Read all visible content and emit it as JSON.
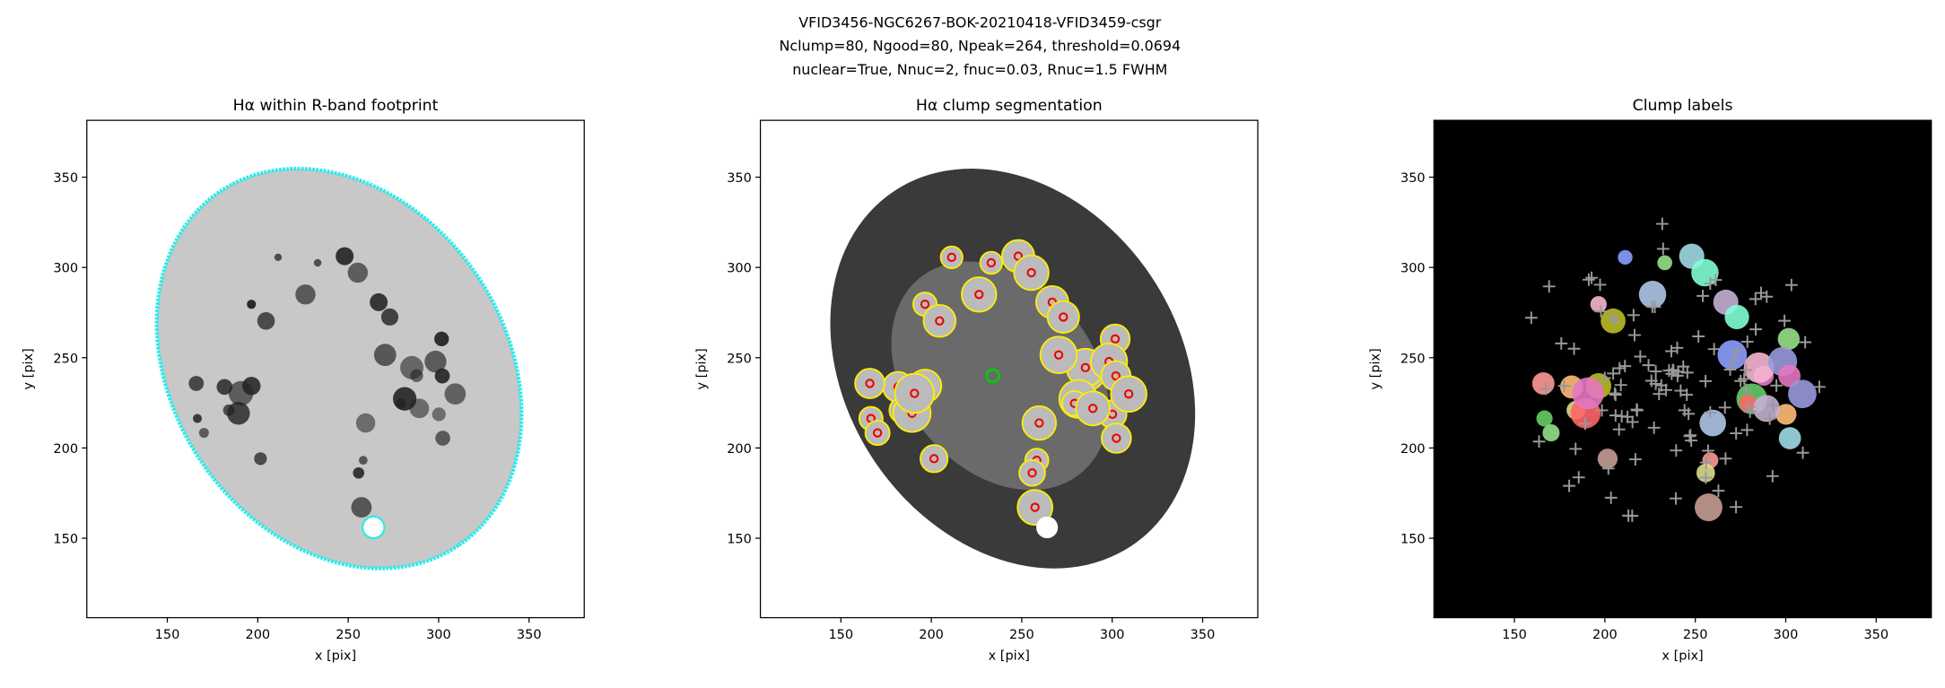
{
  "title": [
    "VFID3456-NGC6267-BOK-20210418-VFID3459-csgr",
    "Nclump=80, Ngood=80, Npeak=264, threshold=0.0694",
    "nuclear=True, Nnuc=2, fnuc=0.03, Rnuc=1.5 FWHM"
  ],
  "chart_data": [
    {
      "type": "image",
      "title": "Hα within R-band footprint",
      "xlabel": "x [pix]",
      "ylabel": "y [pix]",
      "style": "footprint",
      "xlim": [
        105.5,
        380.5
      ],
      "ylim": [
        106,
        381.5
      ],
      "xticks": [
        150,
        200,
        250,
        300,
        350
      ],
      "yticks": [
        150,
        200,
        250,
        300,
        350
      ]
    },
    {
      "type": "image",
      "title": "Hα clump segmentation",
      "xlabel": "x [pix]",
      "ylabel": "y [pix]",
      "style": "segmentation",
      "xlim": [
        105.5,
        380.5
      ],
      "ylim": [
        106,
        381.5
      ],
      "xticks": [
        150,
        200,
        250,
        300,
        350
      ],
      "yticks": [
        150,
        200,
        250,
        300,
        350
      ]
    },
    {
      "type": "image",
      "title": "Clump labels",
      "xlabel": "x [pix]",
      "ylabel": "y [pix]",
      "style": "labels",
      "xlim": [
        105.5,
        380.5
      ],
      "ylim": [
        106,
        381.5
      ],
      "xticks": [
        150,
        200,
        250,
        300,
        350
      ],
      "yticks": [
        150,
        200,
        250,
        300,
        350
      ]
    }
  ]
}
